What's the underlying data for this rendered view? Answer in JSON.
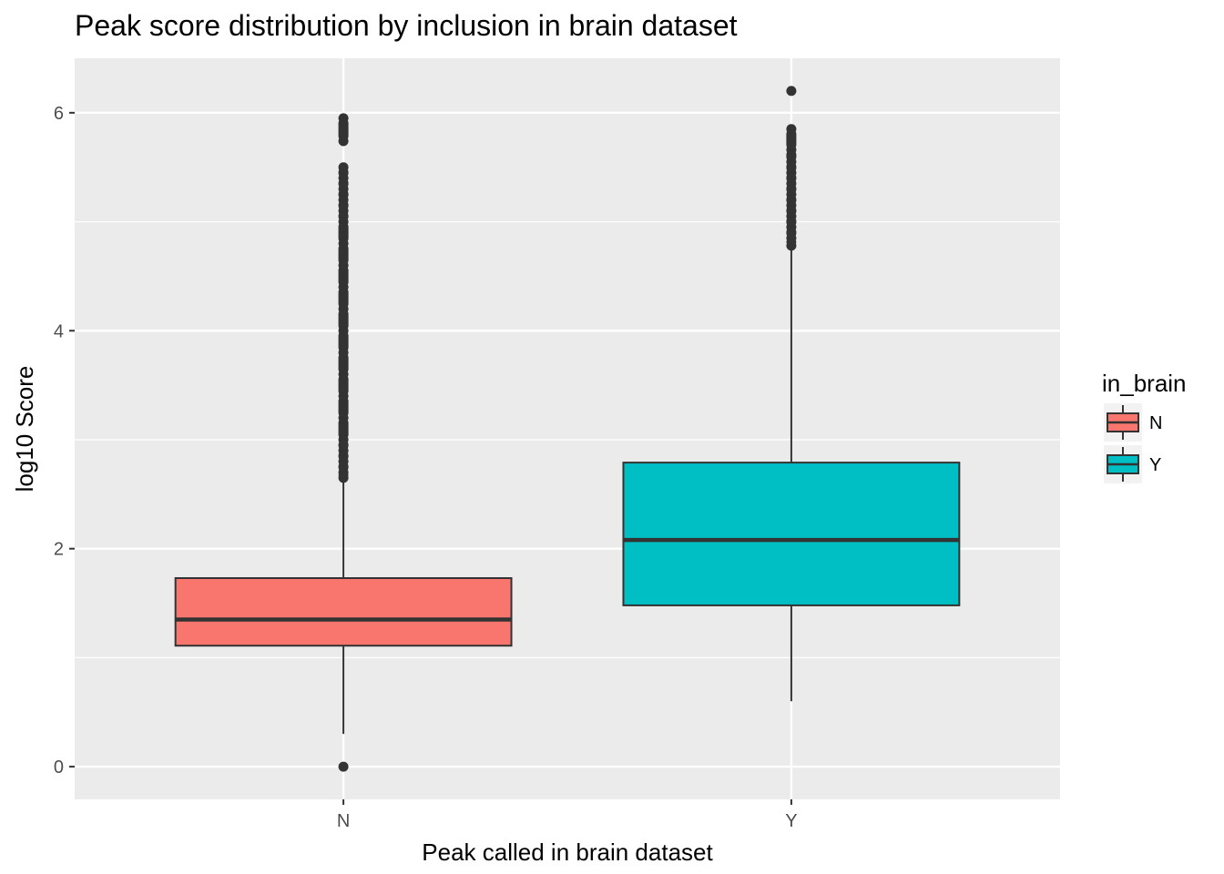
{
  "chart_data": {
    "type": "boxplot",
    "title": "Peak score distribution by inclusion in brain dataset",
    "xlabel": "Peak called in brain dataset",
    "ylabel": "log10 Score",
    "categories": [
      "N",
      "Y"
    ],
    "ylim": [
      -0.3,
      6.5
    ],
    "yticks": [
      0,
      2,
      4,
      6
    ],
    "grid": true,
    "legend": {
      "title": "in_brain",
      "position": "right",
      "entries": [
        {
          "label": "N",
          "color": "#F8766D"
        },
        {
          "label": "Y",
          "color": "#00BFC4"
        }
      ]
    },
    "boxes": [
      {
        "category": "N",
        "color": "#F8766D",
        "whisker_low": 0.3,
        "q1": 1.11,
        "median": 1.35,
        "q3": 1.73,
        "whisker_high": 2.65,
        "outliers": [
          0.0,
          2.65,
          2.7,
          2.8,
          2.9,
          3.0,
          3.2,
          3.4,
          3.6,
          3.8,
          4.0,
          4.2,
          4.4,
          4.6,
          4.8,
          5.0,
          5.1,
          5.2,
          5.3,
          5.4,
          5.5,
          5.74,
          5.95
        ]
      },
      {
        "category": "Y",
        "color": "#00BFC4",
        "whisker_low": 0.6,
        "q1": 1.48,
        "median": 2.08,
        "q3": 2.79,
        "whisker_high": 4.75,
        "outliers": [
          4.78,
          4.85,
          4.95,
          5.05,
          5.15,
          5.25,
          5.35,
          5.45,
          5.55,
          5.66,
          5.85,
          6.2
        ]
      }
    ]
  }
}
